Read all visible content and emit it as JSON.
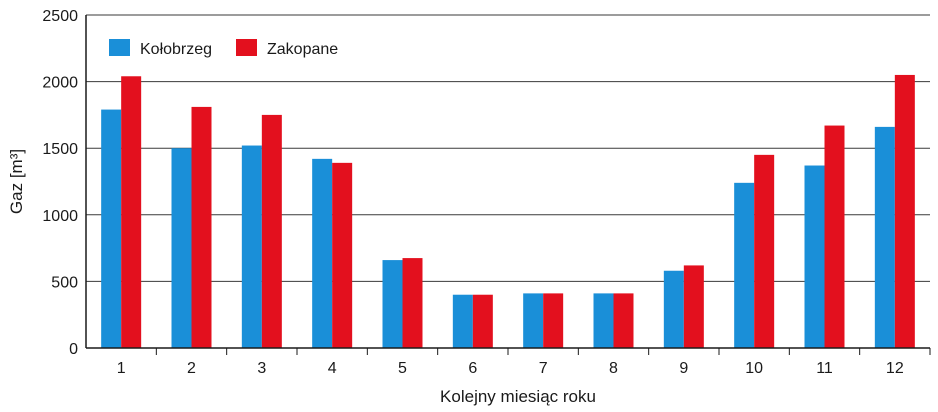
{
  "chart_data": {
    "type": "bar",
    "categories": [
      "1",
      "2",
      "3",
      "4",
      "5",
      "6",
      "7",
      "8",
      "9",
      "10",
      "11",
      "12"
    ],
    "series": [
      {
        "name": "Kołobrzeg",
        "color": "#1a8fd8",
        "values": [
          1790,
          1500,
          1520,
          1420,
          660,
          400,
          410,
          410,
          580,
          1240,
          1370,
          1660
        ]
      },
      {
        "name": "Zakopane",
        "color": "#e3101e",
        "values": [
          2040,
          1810,
          1750,
          1390,
          675,
          400,
          410,
          410,
          620,
          1450,
          1670,
          2050
        ]
      }
    ],
    "xlabel": "Kolejny miesiąc roku",
    "ylabel": "Gaz [m³]",
    "ylim": [
      0,
      2500
    ],
    "yticks": [
      "0",
      "500",
      "1000",
      "1500",
      "2000",
      "2500"
    ],
    "grid": true,
    "legend_position": "top-left"
  }
}
